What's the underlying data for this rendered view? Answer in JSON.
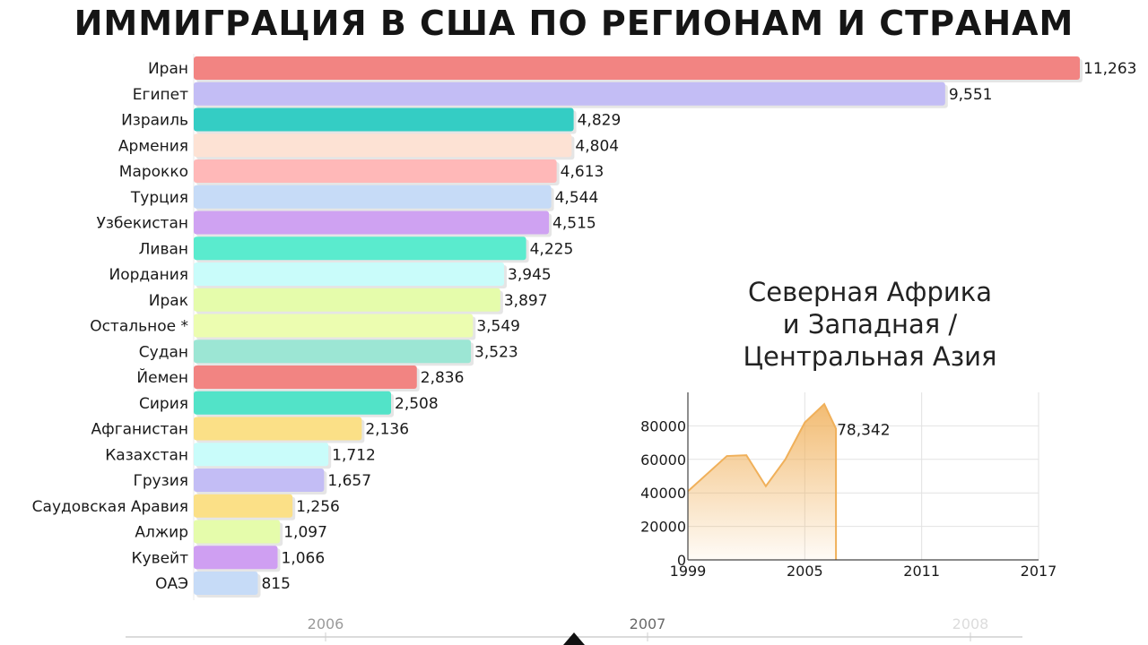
{
  "title": "ИММИГРАЦИЯ В США ПО РЕГИОНАМ И СТРАНАМ",
  "chart_data": [
    {
      "type": "bar",
      "orientation": "horizontal",
      "categories": [
        "Иран",
        "Египет",
        "Израиль",
        "Армения",
        "Марокко",
        "Турция",
        "Узбекистан",
        "Ливан",
        "Иордания",
        "Ирак",
        "Остальное *",
        "Судан",
        "Йемен",
        "Сирия",
        "Афганистан",
        "Казахстан",
        "Грузия",
        "Саудовская Аравия",
        "Алжир",
        "Кувейт",
        "ОАЭ"
      ],
      "values": [
        11263,
        9551,
        4829,
        4804,
        4613,
        4544,
        4515,
        4225,
        3945,
        3897,
        3549,
        3523,
        2836,
        2508,
        2136,
        1712,
        1657,
        1256,
        1097,
        1066,
        815
      ],
      "value_labels": [
        "11,263",
        "9,551",
        "4,829",
        "4,804",
        "4,613",
        "4,544",
        "4,515",
        "4,225",
        "3,945",
        "3,897",
        "3,549",
        "3,523",
        "2,836",
        "2,508",
        "2,136",
        "1,712",
        "1,657",
        "1,256",
        "1,097",
        "1,066",
        "815"
      ],
      "colors": [
        "#f28482",
        "#c3bdf5",
        "#34cdc4",
        "#fde2d4",
        "#ffb8b8",
        "#c6dbf7",
        "#cfa2f2",
        "#5aebce",
        "#c9fcfa",
        "#e5fcab",
        "#ecfdb0",
        "#9ce6d4",
        "#f28482",
        "#52e3c8",
        "#fbe087",
        "#c9fcfa",
        "#c3bdf5",
        "#fbe087",
        "#e5fcab",
        "#cf9ff2",
        "#c6dbf7"
      ],
      "xlim": [
        0,
        11263
      ]
    },
    {
      "type": "area",
      "title_lines": [
        "Северная Африка",
        "и Западная /",
        "Центральная Азия"
      ],
      "x": [
        1999,
        2001,
        2002,
        2003,
        2004,
        2005,
        2006,
        2006.6
      ],
      "y": [
        41000,
        62000,
        62500,
        44000,
        60000,
        82000,
        93000,
        78342
      ],
      "end_label": "78,342",
      "xticks": [
        "1999",
        "2005",
        "2011",
        "2017"
      ],
      "yticks": [
        "0",
        "20000",
        "40000",
        "60000",
        "80000"
      ],
      "xlim": [
        1999,
        2017
      ],
      "ylim": [
        0,
        100000
      ],
      "grid": true,
      "color": "#f0b05a"
    }
  ],
  "timeline": {
    "ticks": [
      "2006",
      "2007",
      "2008"
    ]
  }
}
